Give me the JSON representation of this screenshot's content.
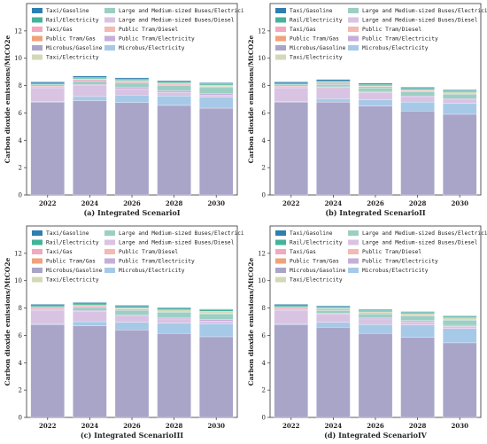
{
  "legend": [
    {
      "name": "Taxi/Gasoline",
      "color": "#2e7fb0"
    },
    {
      "name": "Large and Medium-sized Buses/Electricity",
      "color": "#9ccfc3"
    },
    {
      "name": "Rail/Electricity",
      "color": "#45b39a"
    },
    {
      "name": "Large and Medium-sized Buses/Diesel",
      "color": "#d9c3e3"
    },
    {
      "name": "Taxi/Gas",
      "color": "#f2a9c0"
    },
    {
      "name": "Public Tram/Diesel",
      "color": "#f4b9b2"
    },
    {
      "name": "Public Tram/Gas",
      "color": "#f0a27a"
    },
    {
      "name": "Public Tram/Electricity",
      "color": "#c6aedb"
    },
    {
      "name": "Microbus/Gasoline",
      "color": "#a9a5c9"
    },
    {
      "name": "Microbus/Electricity",
      "color": "#a7c9e8"
    },
    {
      "name": "Taxi/Electricity",
      "color": "#d3d9b8"
    }
  ],
  "chart_data": [
    {
      "type": "bar",
      "stacked": true,
      "caption": "(a) Integrated ScenarioI",
      "ylabel": "Carbon dioxide emissions/MtCO2e",
      "ylim": [
        0,
        14
      ],
      "yticks": [
        0,
        2,
        4,
        6,
        8,
        10,
        12
      ],
      "categories": [
        "2022",
        "2024",
        "2026",
        "2028",
        "2030"
      ],
      "series": [
        {
          "name": "Microbus/Gasoline",
          "values": [
            6.8,
            6.9,
            6.75,
            6.55,
            6.35
          ]
        },
        {
          "name": "Microbus/Electricity",
          "values": [
            0.05,
            0.3,
            0.55,
            0.7,
            0.8
          ]
        },
        {
          "name": "Large and Medium-sized Buses/Diesel",
          "values": [
            0.95,
            0.8,
            0.45,
            0.25,
            0.15
          ]
        },
        {
          "name": "Public Tram/Electricity",
          "values": [
            0.05,
            0.08,
            0.1,
            0.12,
            0.13
          ]
        },
        {
          "name": "Large and Medium-sized Buses/Electricity",
          "values": [
            0.08,
            0.25,
            0.35,
            0.4,
            0.42
          ]
        },
        {
          "name": "Taxi/Gas",
          "values": [
            0.12,
            0.12,
            0.1,
            0.08,
            0.07
          ]
        },
        {
          "name": "Taxi/Electricity",
          "values": [
            0.02,
            0.05,
            0.08,
            0.1,
            0.12
          ]
        },
        {
          "name": "Rail/Electricity",
          "values": [
            0.1,
            0.1,
            0.11,
            0.11,
            0.12
          ]
        },
        {
          "name": "Taxi/Gasoline",
          "values": [
            0.1,
            0.1,
            0.08,
            0.06,
            0.05
          ]
        }
      ]
    },
    {
      "type": "bar",
      "stacked": true,
      "caption": "(b) Integrated ScenarioII",
      "ylabel": "Carbon dioxide emissions/MtCO2e",
      "ylim": [
        0,
        14
      ],
      "yticks": [
        0,
        2,
        4,
        6,
        8,
        10,
        12
      ],
      "categories": [
        "2022",
        "2024",
        "2026",
        "2028",
        "2030"
      ],
      "series": [
        {
          "name": "Microbus/Gasoline",
          "values": [
            6.8,
            6.8,
            6.5,
            6.15,
            5.9
          ]
        },
        {
          "name": "Microbus/Electricity",
          "values": [
            0.05,
            0.25,
            0.45,
            0.65,
            0.8
          ]
        },
        {
          "name": "Large and Medium-sized Buses/Diesel",
          "values": [
            0.95,
            0.8,
            0.55,
            0.35,
            0.25
          ]
        },
        {
          "name": "Public Tram/Electricity",
          "values": [
            0.05,
            0.06,
            0.08,
            0.1,
            0.1
          ]
        },
        {
          "name": "Large and Medium-sized Buses/Electricity",
          "values": [
            0.08,
            0.18,
            0.25,
            0.3,
            0.32
          ]
        },
        {
          "name": "Taxi/Gas",
          "values": [
            0.12,
            0.12,
            0.1,
            0.08,
            0.06
          ]
        },
        {
          "name": "Taxi/Electricity",
          "values": [
            0.02,
            0.04,
            0.06,
            0.08,
            0.1
          ]
        },
        {
          "name": "Rail/Electricity",
          "values": [
            0.1,
            0.1,
            0.1,
            0.11,
            0.11
          ]
        },
        {
          "name": "Taxi/Gasoline",
          "values": [
            0.1,
            0.1,
            0.08,
            0.06,
            0.05
          ]
        }
      ]
    },
    {
      "type": "bar",
      "stacked": true,
      "caption": "(c) Integrated ScenarioIII",
      "ylabel": "Carbon dioxide emissions/MtCO2e",
      "ylim": [
        0,
        14
      ],
      "yticks": [
        0,
        2,
        4,
        6,
        8,
        10,
        12
      ],
      "categories": [
        "2022",
        "2024",
        "2026",
        "2028",
        "2030"
      ],
      "series": [
        {
          "name": "Microbus/Gasoline",
          "values": [
            6.8,
            6.7,
            6.4,
            6.15,
            5.9
          ]
        },
        {
          "name": "Microbus/Electricity",
          "values": [
            0.05,
            0.3,
            0.55,
            0.75,
            0.95
          ]
        },
        {
          "name": "Large and Medium-sized Buses/Diesel",
          "values": [
            0.95,
            0.75,
            0.45,
            0.3,
            0.2
          ]
        },
        {
          "name": "Public Tram/Electricity",
          "values": [
            0.05,
            0.07,
            0.09,
            0.1,
            0.11
          ]
        },
        {
          "name": "Large and Medium-sized Buses/Electricity",
          "values": [
            0.08,
            0.22,
            0.35,
            0.4,
            0.42
          ]
        },
        {
          "name": "Taxi/Gas",
          "values": [
            0.12,
            0.11,
            0.09,
            0.07,
            0.06
          ]
        },
        {
          "name": "Taxi/Electricity",
          "values": [
            0.02,
            0.05,
            0.08,
            0.1,
            0.12
          ]
        },
        {
          "name": "Rail/Electricity",
          "values": [
            0.1,
            0.1,
            0.11,
            0.11,
            0.12
          ]
        },
        {
          "name": "Taxi/Gasoline",
          "values": [
            0.1,
            0.1,
            0.08,
            0.06,
            0.05
          ]
        }
      ]
    },
    {
      "type": "bar",
      "stacked": true,
      "caption": "(d) Integrated ScenarioIV",
      "ylabel": "Carbon dioxide emissions/MtCO2e",
      "ylim": [
        0,
        14
      ],
      "yticks": [
        0,
        2,
        4,
        6,
        8,
        10,
        12
      ],
      "categories": [
        "2022",
        "2024",
        "2026",
        "2028",
        "2030"
      ],
      "series": [
        {
          "name": "Microbus/Gasoline",
          "values": [
            6.8,
            6.6,
            6.15,
            5.85,
            5.45
          ]
        },
        {
          "name": "Microbus/Electricity",
          "values": [
            0.05,
            0.35,
            0.65,
            0.9,
            1.05
          ]
        },
        {
          "name": "Large and Medium-sized Buses/Diesel",
          "values": [
            0.95,
            0.6,
            0.4,
            0.25,
            0.15
          ]
        },
        {
          "name": "Public Tram/Electricity",
          "values": [
            0.05,
            0.06,
            0.07,
            0.08,
            0.09
          ]
        },
        {
          "name": "Large and Medium-sized Buses/Electricity",
          "values": [
            0.08,
            0.22,
            0.3,
            0.35,
            0.38
          ]
        },
        {
          "name": "Taxi/Gas",
          "values": [
            0.12,
            0.1,
            0.08,
            0.06,
            0.05
          ]
        },
        {
          "name": "Taxi/Electricity",
          "values": [
            0.02,
            0.05,
            0.08,
            0.1,
            0.12
          ]
        },
        {
          "name": "Rail/Electricity",
          "values": [
            0.1,
            0.1,
            0.1,
            0.1,
            0.1
          ]
        },
        {
          "name": "Taxi/Gasoline",
          "values": [
            0.1,
            0.08,
            0.06,
            0.05,
            0.04
          ]
        }
      ]
    }
  ]
}
